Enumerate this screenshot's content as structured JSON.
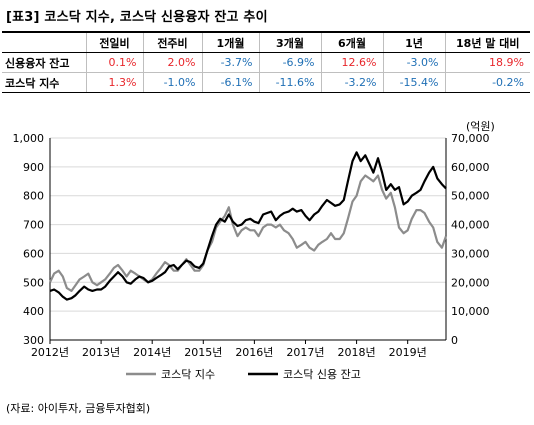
{
  "title": "[표3] 코스닥 지수, 코스닥 신용융자 잔고 추이",
  "table": {
    "columns": [
      "",
      "전일비",
      "전주비",
      "1개월",
      "3개월",
      "6개월",
      "1년",
      "18년 말 대비"
    ],
    "rows": [
      {
        "label": "신용융자 잔고",
        "values": [
          "0.1%",
          "2.0%",
          "-3.7%",
          "-6.9%",
          "12.6%",
          "-3.0%",
          "18.9%"
        ]
      },
      {
        "label": "코스닥 지수",
        "values": [
          "1.3%",
          "-1.0%",
          "-6.1%",
          "-11.6%",
          "-3.2%",
          "-15.4%",
          "-0.2%"
        ]
      }
    ]
  },
  "source": "(자료: 아이투자, 금융투자협회)",
  "colors": {
    "kosdaq": "#8c8c8c",
    "credit": "#000000",
    "positive": "#e8262b",
    "negative": "#1f6fb5"
  },
  "chart_data": {
    "type": "line",
    "x_ticks": [
      "2012년",
      "2013년",
      "2014년",
      "2015년",
      "2016년",
      "2017년",
      "2018년",
      "2019년"
    ],
    "x_range": [
      2012.0,
      2019.75
    ],
    "y_left": {
      "range": [
        300,
        1000
      ],
      "ticks": [
        300,
        400,
        500,
        600,
        700,
        800,
        900,
        "1,000"
      ]
    },
    "y_right": {
      "unit": "(억원)",
      "range": [
        0,
        70000
      ],
      "ticks": [
        "0",
        "10,000",
        "20,000",
        "30,000",
        "40,000",
        "50,000",
        "60,000",
        "70,000"
      ]
    },
    "grid": true,
    "legend_position": "bottom",
    "series": [
      {
        "name": "코스닥 지수",
        "axis": "left",
        "x": [
          2012.0,
          2012.08,
          2012.17,
          2012.25,
          2012.33,
          2012.42,
          2012.5,
          2012.58,
          2012.67,
          2012.75,
          2012.83,
          2012.92,
          2013.0,
          2013.08,
          2013.17,
          2013.25,
          2013.33,
          2013.42,
          2013.5,
          2013.58,
          2013.67,
          2013.75,
          2013.83,
          2013.92,
          2014.0,
          2014.08,
          2014.17,
          2014.25,
          2014.33,
          2014.42,
          2014.5,
          2014.58,
          2014.67,
          2014.75,
          2014.83,
          2014.92,
          2015.0,
          2015.08,
          2015.17,
          2015.25,
          2015.33,
          2015.42,
          2015.5,
          2015.58,
          2015.67,
          2015.75,
          2015.83,
          2015.92,
          2016.0,
          2016.08,
          2016.17,
          2016.25,
          2016.33,
          2016.42,
          2016.5,
          2016.58,
          2016.67,
          2016.75,
          2016.83,
          2016.92,
          2017.0,
          2017.08,
          2017.17,
          2017.25,
          2017.33,
          2017.42,
          2017.5,
          2017.58,
          2017.67,
          2017.75,
          2017.83,
          2017.92,
          2018.0,
          2018.08,
          2018.17,
          2018.25,
          2018.33,
          2018.42,
          2018.5,
          2018.58,
          2018.67,
          2018.75,
          2018.83,
          2018.92,
          2019.0,
          2019.08,
          2019.17,
          2019.25,
          2019.33,
          2019.42,
          2019.5,
          2019.58,
          2019.67,
          2019.75
        ],
        "y": [
          500,
          530,
          540,
          520,
          480,
          470,
          490,
          510,
          520,
          530,
          500,
          490,
          500,
          510,
          530,
          550,
          560,
          540,
          520,
          540,
          530,
          520,
          510,
          500,
          510,
          530,
          550,
          570,
          560,
          540,
          540,
          560,
          580,
          560,
          540,
          540,
          560,
          610,
          640,
          690,
          710,
          730,
          760,
          700,
          660,
          680,
          690,
          680,
          680,
          660,
          690,
          700,
          700,
          690,
          700,
          680,
          670,
          650,
          620,
          630,
          640,
          620,
          610,
          630,
          640,
          650,
          670,
          650,
          650,
          670,
          720,
          780,
          800,
          850,
          870,
          860,
          850,
          870,
          820,
          790,
          810,
          760,
          690,
          670,
          680,
          720,
          750,
          750,
          740,
          710,
          690,
          640,
          620,
          660
        ]
      },
      {
        "name": "코스닥 신용 잔고",
        "axis": "right",
        "x": [
          2012.0,
          2012.08,
          2012.17,
          2012.25,
          2012.33,
          2012.42,
          2012.5,
          2012.58,
          2012.67,
          2012.75,
          2012.83,
          2012.92,
          2013.0,
          2013.08,
          2013.17,
          2013.25,
          2013.33,
          2013.42,
          2013.5,
          2013.58,
          2013.67,
          2013.75,
          2013.83,
          2013.92,
          2014.0,
          2014.08,
          2014.17,
          2014.25,
          2014.33,
          2014.42,
          2014.5,
          2014.58,
          2014.67,
          2014.75,
          2014.83,
          2014.92,
          2015.0,
          2015.08,
          2015.17,
          2015.25,
          2015.33,
          2015.42,
          2015.5,
          2015.58,
          2015.67,
          2015.75,
          2015.83,
          2015.92,
          2016.0,
          2016.08,
          2016.17,
          2016.25,
          2016.33,
          2016.42,
          2016.5,
          2016.58,
          2016.67,
          2016.75,
          2016.83,
          2016.92,
          2017.0,
          2017.08,
          2017.17,
          2017.25,
          2017.33,
          2017.42,
          2017.5,
          2017.58,
          2017.67,
          2017.75,
          2017.83,
          2017.92,
          2018.0,
          2018.08,
          2018.17,
          2018.25,
          2018.33,
          2018.42,
          2018.5,
          2018.58,
          2018.67,
          2018.75,
          2018.83,
          2018.92,
          2019.0,
          2019.08,
          2019.17,
          2019.25,
          2019.33,
          2019.42,
          2019.5,
          2019.58,
          2019.67,
          2019.75
        ],
        "y": [
          17000,
          17500,
          16500,
          15000,
          14000,
          14500,
          15500,
          17000,
          18500,
          17500,
          17000,
          17500,
          17500,
          18500,
          20500,
          22000,
          23500,
          22000,
          20000,
          19500,
          21000,
          22000,
          21500,
          20000,
          20500,
          21500,
          22500,
          23500,
          25500,
          26000,
          24500,
          26000,
          27500,
          27000,
          25500,
          25000,
          26500,
          31000,
          36000,
          40000,
          42000,
          41000,
          43500,
          41000,
          39500,
          40000,
          41500,
          42000,
          41000,
          40500,
          43500,
          44000,
          44500,
          41500,
          43000,
          44000,
          44500,
          45500,
          44500,
          45000,
          43000,
          41500,
          43500,
          44500,
          46500,
          48500,
          47500,
          46500,
          47000,
          48500,
          55000,
          62000,
          65000,
          62000,
          64000,
          61000,
          58000,
          63000,
          58000,
          52000,
          54000,
          52000,
          53000,
          47000,
          48000,
          50000,
          51000,
          52000,
          55000,
          58000,
          60000,
          56000,
          54000,
          52500
        ]
      }
    ]
  }
}
